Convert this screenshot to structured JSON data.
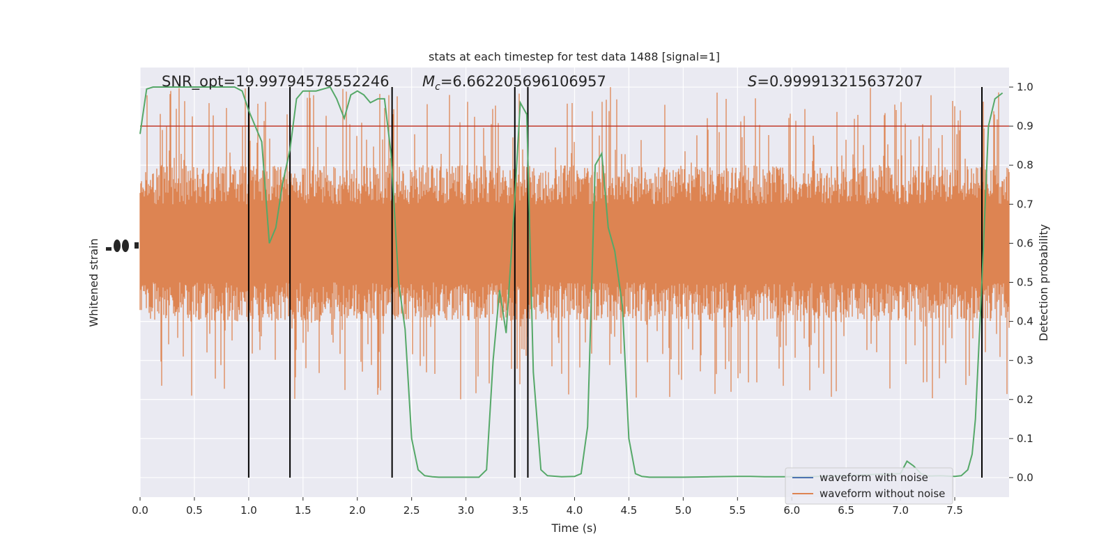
{
  "chart_data": {
    "type": "line",
    "title": "stats at each timestep for test data 1488 [signal=1]",
    "xlabel": "Time (s)",
    "ylabel_left": "Whitened strain",
    "ylabel_right": "Detection probability",
    "xlim": [
      0,
      8.0
    ],
    "ylim_right": [
      -0.05,
      1.05
    ],
    "x_ticks": [
      0.0,
      0.5,
      1.0,
      1.5,
      2.0,
      2.5,
      3.0,
      3.5,
      4.0,
      4.5,
      5.0,
      5.5,
      6.0,
      6.5,
      7.0,
      7.5
    ],
    "x_tick_labels": [
      "0.0",
      "0.5",
      "1.0",
      "1.5",
      "2.0",
      "2.5",
      "3.0",
      "3.5",
      "4.0",
      "4.5",
      "5.0",
      "5.5",
      "6.0",
      "6.5",
      "7.0",
      "7.5"
    ],
    "y_ticks_right": [
      0.0,
      0.1,
      0.2,
      0.3,
      0.4,
      0.5,
      0.6,
      0.7,
      0.8,
      0.9,
      1.0
    ],
    "y_tick_labels_right": [
      "0.0",
      "0.1",
      "0.2",
      "0.3",
      "0.4",
      "0.5",
      "0.6",
      "0.7",
      "0.8",
      "0.9",
      "1.0"
    ],
    "grid": true,
    "legend_placement": "lower-right",
    "annotations": {
      "snr_label": "SNR_opt=19.99794578552246",
      "mc_symbol": "M",
      "mc_subscript": "c",
      "mc_value": "=6.662205696106957",
      "s_symbol": "S",
      "s_value": "=0.999913215637207"
    },
    "threshold": 0.9,
    "vertical_markers_x": [
      1.0,
      1.38,
      2.32,
      3.45,
      3.57,
      7.75
    ],
    "series": [
      {
        "name": "waveform with noise",
        "color": "#4c72b0",
        "values": []
      },
      {
        "name": "waveform without noise",
        "color": "#dd8452",
        "band_envelope": {
          "center": 0.6,
          "dense_half_width": 0.1,
          "typical_half_width": 0.2,
          "max_half_width": 0.4
        }
      },
      {
        "name": "detection probability",
        "color": "#55a868",
        "x": [
          0.0,
          0.06,
          0.12,
          0.25,
          0.5,
          0.75,
          0.87,
          0.94,
          1.0,
          1.06,
          1.12,
          1.19,
          1.25,
          1.31,
          1.38,
          1.44,
          1.5,
          1.62,
          1.75,
          1.81,
          1.88,
          1.94,
          2.0,
          2.06,
          2.12,
          2.19,
          2.25,
          2.31,
          2.38,
          2.44,
          2.5,
          2.56,
          2.62,
          2.69,
          2.75,
          2.88,
          3.0,
          3.12,
          3.19,
          3.25,
          3.31,
          3.37,
          3.44,
          3.5,
          3.56,
          3.62,
          3.69,
          3.75,
          3.88,
          4.0,
          4.06,
          4.12,
          4.19,
          4.25,
          4.31,
          4.37,
          4.44,
          4.5,
          4.56,
          4.62,
          4.69,
          4.75,
          5.0,
          5.25,
          5.5,
          5.62,
          5.75,
          6.0,
          6.25,
          6.5,
          6.75,
          7.0,
          7.06,
          7.12,
          7.19,
          7.25,
          7.37,
          7.5,
          7.56,
          7.62,
          7.66,
          7.69,
          7.75,
          7.81,
          7.87,
          7.94
        ],
        "values": [
          0.88,
          0.995,
          1.0,
          1.0,
          1.0,
          1.0,
          1.0,
          0.99,
          0.94,
          0.9,
          0.86,
          0.6,
          0.64,
          0.75,
          0.84,
          0.97,
          0.99,
          0.99,
          1.0,
          0.97,
          0.92,
          0.98,
          0.99,
          0.98,
          0.96,
          0.97,
          0.97,
          0.83,
          0.5,
          0.38,
          0.1,
          0.02,
          0.005,
          0.002,
          0.001,
          0.001,
          0.001,
          0.001,
          0.02,
          0.3,
          0.48,
          0.37,
          0.67,
          0.96,
          0.93,
          0.27,
          0.02,
          0.005,
          0.002,
          0.003,
          0.01,
          0.13,
          0.8,
          0.83,
          0.64,
          0.58,
          0.44,
          0.1,
          0.01,
          0.003,
          0.001,
          0.001,
          0.001,
          0.002,
          0.003,
          0.003,
          0.002,
          0.002,
          0.003,
          0.005,
          0.008,
          0.01,
          0.042,
          0.03,
          0.01,
          0.004,
          0.005,
          0.003,
          0.005,
          0.02,
          0.06,
          0.15,
          0.5,
          0.9,
          0.97,
          0.985
        ]
      }
    ],
    "colors": {
      "axes_bg": "#eaeaf2",
      "grid": "#ffffff",
      "threshold": "#c0392b",
      "marker": "#000000"
    }
  }
}
